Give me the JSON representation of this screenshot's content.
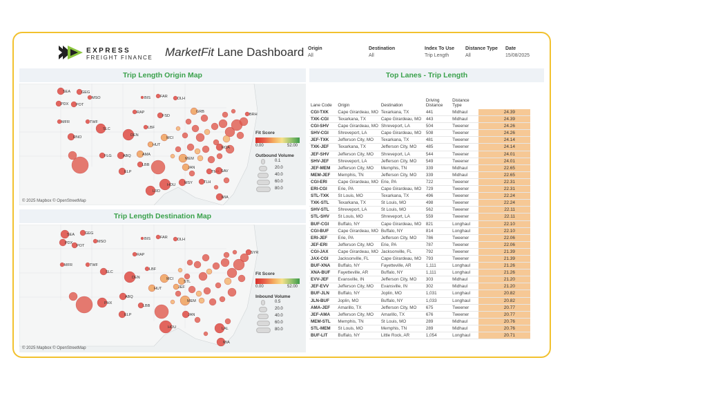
{
  "header": {
    "logo_line1": "EXPRESS",
    "logo_line2": "FREIGHT FINANCE",
    "title_italic": "MarketFit",
    "title_rest": " Lane Dashboard"
  },
  "filters": [
    {
      "label": "Origin",
      "value": "All"
    },
    {
      "label": "Destination",
      "value": "All"
    },
    {
      "label": "Index To Use",
      "value": "Trip Length"
    },
    {
      "label": "Distance Type",
      "value": "All"
    },
    {
      "label": "Date",
      "value": "15/08/2025"
    }
  ],
  "origin_map": {
    "title": "Trip Length Origin Map",
    "copyright": "© 2025 Mapbox © OpenStreetMap",
    "legend_score_title": "Fit Score",
    "score_min": "0.00",
    "score_max": "52.00",
    "legend_volume_title": "Outbound Volume",
    "volumes": [
      "0.1",
      "20.0",
      "40.0",
      "60.0",
      "80.0"
    ]
  },
  "destination_map": {
    "title": "Trip Length Destination Map",
    "copyright": "© 2025 Mapbox © OpenStreetMap",
    "legend_score_title": "Fit Score",
    "score_min": "0.00",
    "score_max": "52.00",
    "legend_volume_title": "Inbound Volume",
    "volumes": [
      "0.5",
      "20.0",
      "40.0",
      "60.0",
      "80.0"
    ]
  },
  "lanes_panel": {
    "title": "Top Lanes - Trip Length",
    "headers": {
      "code": "Lane Code",
      "origin": "Origin",
      "destination": "Destination",
      "distance_1": "Driving",
      "distance_2": "Distance",
      "type_1": "Distance",
      "type_2": "Type"
    }
  },
  "lanes": [
    {
      "code": "CGI-TXK",
      "origin": "Cape Girardeau, MO",
      "destination": "Texarkana, TX",
      "distance": "441",
      "type": "Midhaul",
      "score": "24.39"
    },
    {
      "code": "TXK-CGI",
      "origin": "Texarkana, TX",
      "destination": "Cape Girardeau, MO",
      "distance": "443",
      "type": "Midhaul",
      "score": "24.39"
    },
    {
      "code": "CGI-SHV",
      "origin": "Cape Girardeau, MO",
      "destination": "Shreveport, LA",
      "distance": "504",
      "type": "Tweener",
      "score": "24.26"
    },
    {
      "code": "SHV-CGI",
      "origin": "Shreveport, LA",
      "destination": "Cape Girardeau, MO",
      "distance": "508",
      "type": "Tweener",
      "score": "24.26"
    },
    {
      "code": "JEF-TXK",
      "origin": "Jefferson City, MO",
      "destination": "Texarkana, TX",
      "distance": "481",
      "type": "Tweener",
      "score": "24.14"
    },
    {
      "code": "TXK-JEF",
      "origin": "Texarkana, TX",
      "destination": "Jefferson City, MO",
      "distance": "485",
      "type": "Tweener",
      "score": "24.14"
    },
    {
      "code": "JEF-SHV",
      "origin": "Jefferson City, MO",
      "destination": "Shreveport, LA",
      "distance": "544",
      "type": "Tweener",
      "score": "24.01"
    },
    {
      "code": "SHV-JEF",
      "origin": "Shreveport, LA",
      "destination": "Jefferson City, MO",
      "distance": "549",
      "type": "Tweener",
      "score": "24.01"
    },
    {
      "code": "JEF-MEM",
      "origin": "Jefferson City, MO",
      "destination": "Memphis, TN",
      "distance": "339",
      "type": "Midhaul",
      "score": "22.65"
    },
    {
      "code": "MEM-JEF",
      "origin": "Memphis, TN",
      "destination": "Jefferson City, MO",
      "distance": "339",
      "type": "Midhaul",
      "score": "22.65"
    },
    {
      "code": "CGI-ERI",
      "origin": "Cape Girardeau, MO",
      "destination": "Erie, PA",
      "distance": "722",
      "type": "Tweener",
      "score": "22.31"
    },
    {
      "code": "ERI-CGI",
      "origin": "Erie, PA",
      "destination": "Cape Girardeau, MO",
      "distance": "729",
      "type": "Tweener",
      "score": "22.31"
    },
    {
      "code": "STL-TXK",
      "origin": "St Louis, MO",
      "destination": "Texarkana, TX",
      "distance": "496",
      "type": "Tweener",
      "score": "22.24"
    },
    {
      "code": "TXK-STL",
      "origin": "Texarkana, TX",
      "destination": "St Louis, MO",
      "distance": "498",
      "type": "Tweener",
      "score": "22.24"
    },
    {
      "code": "SHV-STL",
      "origin": "Shreveport, LA",
      "destination": "St Louis, MO",
      "distance": "562",
      "type": "Tweener",
      "score": "22.11"
    },
    {
      "code": "STL-SHV",
      "origin": "St Louis, MO",
      "destination": "Shreveport, LA",
      "distance": "559",
      "type": "Tweener",
      "score": "22.11"
    },
    {
      "code": "BUF-CGI",
      "origin": "Buffalo, NY",
      "destination": "Cape Girardeau, MO",
      "distance": "821",
      "type": "Longhaul",
      "score": "22.10"
    },
    {
      "code": "CGI-BUF",
      "origin": "Cape Girardeau, MO",
      "destination": "Buffalo, NY",
      "distance": "814",
      "type": "Longhaul",
      "score": "22.10"
    },
    {
      "code": "ERI-JEF",
      "origin": "Erie, PA",
      "destination": "Jefferson City, MO",
      "distance": "786",
      "type": "Tweener",
      "score": "22.06"
    },
    {
      "code": "JEF-ERI",
      "origin": "Jefferson City, MO",
      "destination": "Erie, PA",
      "distance": "787",
      "type": "Tweener",
      "score": "22.06"
    },
    {
      "code": "CGI-JAX",
      "origin": "Cape Girardeau, MO",
      "destination": "Jacksonville, FL",
      "distance": "792",
      "type": "Tweener",
      "score": "21.39"
    },
    {
      "code": "JAX-CGI",
      "origin": "Jacksonville, FL",
      "destination": "Cape Girardeau, MO",
      "distance": "793",
      "type": "Tweener",
      "score": "21.39"
    },
    {
      "code": "BUF-XNA",
      "origin": "Buffalo, NY",
      "destination": "Fayetteville, AR",
      "distance": "1,111",
      "type": "Longhaul",
      "score": "21.26"
    },
    {
      "code": "XNA-BUF",
      "origin": "Fayetteville, AR",
      "destination": "Buffalo, NY",
      "distance": "1,111",
      "type": "Longhaul",
      "score": "21.26"
    },
    {
      "code": "EVV-JEF",
      "origin": "Evansville, IN",
      "destination": "Jefferson City, MO",
      "distance": "303",
      "type": "Midhaul",
      "score": "21.20"
    },
    {
      "code": "JEF-EVV",
      "origin": "Jefferson City, MO",
      "destination": "Evansville, IN",
      "distance": "302",
      "type": "Midhaul",
      "score": "21.20"
    },
    {
      "code": "BUF-JLN",
      "origin": "Buffalo, NY",
      "destination": "Joplin, MO",
      "distance": "1,031",
      "type": "Longhaul",
      "score": "20.82"
    },
    {
      "code": "JLN-BUF",
      "origin": "Joplin, MO",
      "destination": "Buffalo, NY",
      "distance": "1,033",
      "type": "Longhaul",
      "score": "20.82"
    },
    {
      "code": "AMA-JEF",
      "origin": "Amarillo, TX",
      "destination": "Jefferson City, MO",
      "distance": "675",
      "type": "Tweener",
      "score": "20.77"
    },
    {
      "code": "JEF-AMA",
      "origin": "Jefferson City, MO",
      "destination": "Amarillo, TX",
      "distance": "676",
      "type": "Tweener",
      "score": "20.77"
    },
    {
      "code": "MEM-STL",
      "origin": "Memphis, TN",
      "destination": "St Louis, MO",
      "distance": "289",
      "type": "Midhaul",
      "score": "20.76"
    },
    {
      "code": "STL-MEM",
      "origin": "St Louis, MO",
      "destination": "Memphis, TN",
      "distance": "289",
      "type": "Midhaul",
      "score": "20.76"
    },
    {
      "code": "BUF-LIT",
      "origin": "Buffalo, NY",
      "destination": "Little Rock, AR",
      "distance": "1,054",
      "type": "Longhaul",
      "score": "20.71"
    }
  ],
  "origin_points": [
    {
      "code": "SEA",
      "fit": "low"
    },
    {
      "code": "GEG",
      "fit": "low"
    },
    {
      "code": "MSO",
      "fit": "low"
    },
    {
      "code": "PDX",
      "fit": "low"
    },
    {
      "code": "POT",
      "fit": "low"
    },
    {
      "code": "BIS",
      "fit": "low"
    },
    {
      "code": "FAR",
      "fit": "low"
    },
    {
      "code": "DLH",
      "fit": "low"
    },
    {
      "code": "RAP",
      "fit": "low"
    },
    {
      "code": "MFR",
      "fit": "low"
    },
    {
      "code": "TWF",
      "fit": "low"
    },
    {
      "code": "FSD",
      "fit": "low"
    },
    {
      "code": "GRB",
      "fit": "mid"
    },
    {
      "code": "SLC",
      "fit": "low"
    },
    {
      "code": "DEN",
      "fit": "low"
    },
    {
      "code": "RNO",
      "fit": "low"
    },
    {
      "code": "LBF",
      "fit": "low"
    },
    {
      "code": "MCI",
      "fit": "mid"
    },
    {
      "code": "HUT",
      "fit": "mid"
    },
    {
      "code": "BRH",
      "fit": "low"
    },
    {
      "code": "FLG",
      "fit": "low"
    },
    {
      "code": "ABQ",
      "fit": "low"
    },
    {
      "code": "AMA",
      "fit": "mid"
    },
    {
      "code": "LBB",
      "fit": "low"
    },
    {
      "code": "ELP",
      "fit": "low"
    },
    {
      "code": "JAN",
      "fit": "mid"
    },
    {
      "code": "TMA",
      "fit": "low"
    },
    {
      "code": "SAV",
      "fit": "low"
    },
    {
      "code": "MEM",
      "fit": "mid"
    },
    {
      "code": "LRD",
      "fit": "low"
    },
    {
      "code": "HOU",
      "fit": "low"
    },
    {
      "code": "MSY",
      "fit": "low"
    },
    {
      "code": "TLH",
      "fit": "low"
    },
    {
      "code": "MIA",
      "fit": "low"
    },
    {
      "code": "ROA",
      "fit": "low"
    }
  ],
  "destination_points": [
    {
      "code": "SEA",
      "fit": "low"
    },
    {
      "code": "GEG",
      "fit": "low"
    },
    {
      "code": "PDX",
      "fit": "low"
    },
    {
      "code": "POT",
      "fit": "low"
    },
    {
      "code": "MSO",
      "fit": "low"
    },
    {
      "code": "BIS",
      "fit": "low"
    },
    {
      "code": "FAR",
      "fit": "low"
    },
    {
      "code": "DLH",
      "fit": "low"
    },
    {
      "code": "RAP",
      "fit": "low"
    },
    {
      "code": "MFR",
      "fit": "low"
    },
    {
      "code": "TWF",
      "fit": "low"
    },
    {
      "code": "SLC",
      "fit": "low"
    },
    {
      "code": "DEN",
      "fit": "low"
    },
    {
      "code": "LBF",
      "fit": "low"
    },
    {
      "code": "MCI",
      "fit": "mid"
    },
    {
      "code": "HUT",
      "fit": "mid"
    },
    {
      "code": "JEF",
      "fit": "mid"
    },
    {
      "code": "STL",
      "fit": "mid"
    },
    {
      "code": "SYR",
      "fit": "low"
    },
    {
      "code": "PHX",
      "fit": "low"
    },
    {
      "code": "ABQ",
      "fit": "low"
    },
    {
      "code": "LBB",
      "fit": "low"
    },
    {
      "code": "ELP",
      "fit": "low"
    },
    {
      "code": "MEM",
      "fit": "mid"
    },
    {
      "code": "JAN",
      "fit": "low"
    },
    {
      "code": "HOU",
      "fit": "low"
    },
    {
      "code": "LAL",
      "fit": "low"
    },
    {
      "code": "MIA",
      "fit": "low"
    }
  ]
}
